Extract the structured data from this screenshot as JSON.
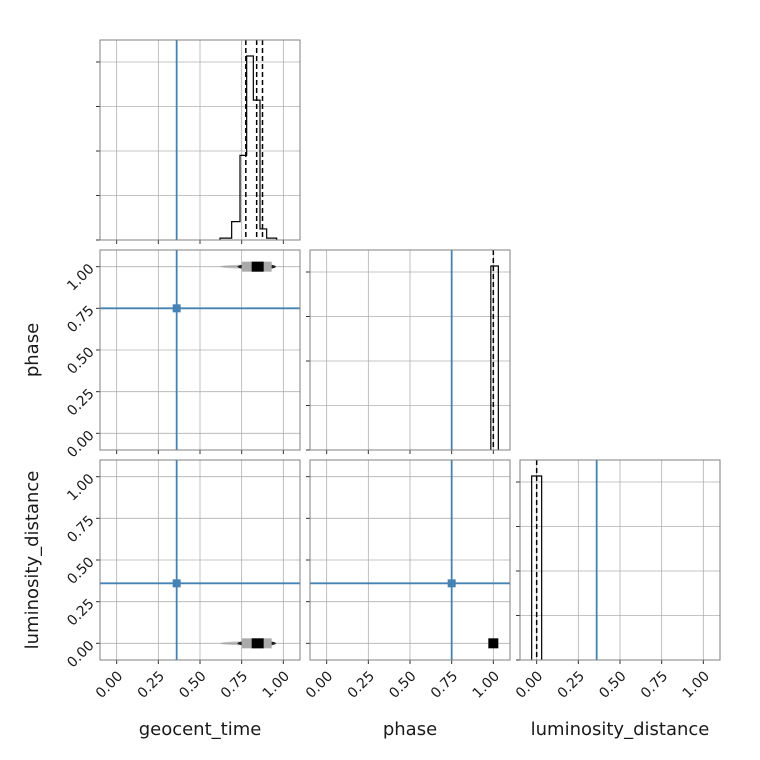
{
  "chart_data": {
    "type": "corner",
    "parameters": [
      "geocent_time",
      "phase",
      "luminosity_distance"
    ],
    "ticks": [
      0.0,
      0.25,
      0.5,
      0.75,
      1.0
    ],
    "tick_labels": [
      "0.00",
      "0.25",
      "0.50",
      "0.75",
      "1.00"
    ],
    "xlim": [
      -0.1,
      1.1
    ],
    "ylim": [
      -0.1,
      1.1
    ],
    "grid": true,
    "truth_color": "#4682b4",
    "histogram_color": "#000000",
    "truths": {
      "geocent_time": 0.36,
      "phase": 0.75,
      "luminosity_distance": 0.36
    },
    "histograms": {
      "geocent_time": {
        "bin_edges": [
          0.62,
          0.69,
          0.74,
          0.78,
          0.82,
          0.86,
          0.9,
          0.96
        ],
        "counts": [
          0.01,
          0.1,
          0.46,
          1.0,
          0.76,
          0.06,
          0.01
        ],
        "quantiles": [
          0.775,
          0.84,
          0.875
        ],
        "median": 0.84
      },
      "phase": {
        "bin_edges": [
          0.985,
          1.0,
          1.03
        ],
        "counts": [
          1.0,
          1.0
        ],
        "quantiles": [
          1.0
        ],
        "median": 1.0
      },
      "luminosity_distance": {
        "bin_edges": [
          -0.03,
          0.0,
          0.03
        ],
        "counts": [
          1.0,
          1.0
        ],
        "quantiles": [
          0.0
        ],
        "median": 0.0
      }
    },
    "scatter_2d": [
      {
        "x": "geocent_time",
        "y": "phase",
        "x_center": 0.84,
        "x_spread": [
          0.62,
          0.96
        ],
        "y_value": 1.0
      },
      {
        "x": "geocent_time",
        "y": "luminosity_distance",
        "x_center": 0.84,
        "x_spread": [
          0.62,
          0.96
        ],
        "y_value": 0.0
      },
      {
        "x": "phase",
        "y": "luminosity_distance",
        "x_center": 1.0,
        "x_spread": [
          0.98,
          1.02
        ],
        "y_value": 0.0
      }
    ]
  }
}
